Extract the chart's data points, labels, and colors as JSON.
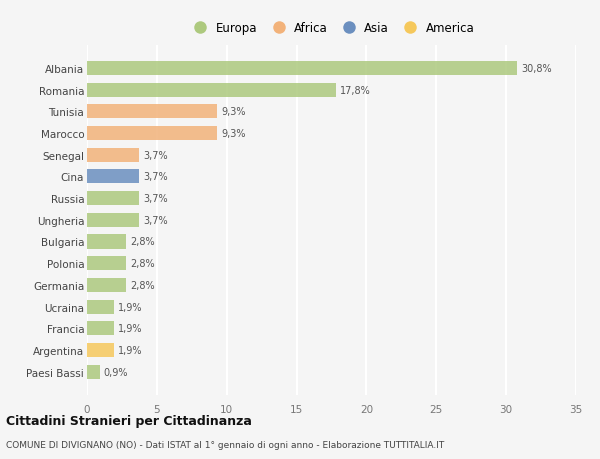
{
  "countries": [
    "Albania",
    "Romania",
    "Tunisia",
    "Marocco",
    "Senegal",
    "Cina",
    "Russia",
    "Ungheria",
    "Bulgaria",
    "Polonia",
    "Germania",
    "Ucraina",
    "Francia",
    "Argentina",
    "Paesi Bassi"
  ],
  "values": [
    30.8,
    17.8,
    9.3,
    9.3,
    3.7,
    3.7,
    3.7,
    3.7,
    2.8,
    2.8,
    2.8,
    1.9,
    1.9,
    1.9,
    0.9
  ],
  "labels": [
    "30,8%",
    "17,8%",
    "9,3%",
    "9,3%",
    "3,7%",
    "3,7%",
    "3,7%",
    "3,7%",
    "2,8%",
    "2,8%",
    "2,8%",
    "1,9%",
    "1,9%",
    "1,9%",
    "0,9%"
  ],
  "colors": [
    "#adc97e",
    "#adc97e",
    "#f2b27a",
    "#f2b27a",
    "#f2b27a",
    "#6b8fbf",
    "#adc97e",
    "#adc97e",
    "#adc97e",
    "#adc97e",
    "#adc97e",
    "#adc97e",
    "#adc97e",
    "#f5c85c",
    "#adc97e"
  ],
  "legend_labels": [
    "Europa",
    "Africa",
    "Asia",
    "America"
  ],
  "legend_colors": [
    "#adc97e",
    "#f2b27a",
    "#6b8fbf",
    "#f5c85c"
  ],
  "xlim": [
    0,
    35
  ],
  "xticks": [
    0,
    5,
    10,
    15,
    20,
    25,
    30,
    35
  ],
  "title": "Cittadini Stranieri per Cittadinanza",
  "subtitle": "COMUNE DI DIVIGNANO (NO) - Dati ISTAT al 1° gennaio di ogni anno - Elaborazione TUTTITALIA.IT",
  "bg_color": "#f5f5f5",
  "grid_color": "#ffffff",
  "bar_height": 0.65
}
